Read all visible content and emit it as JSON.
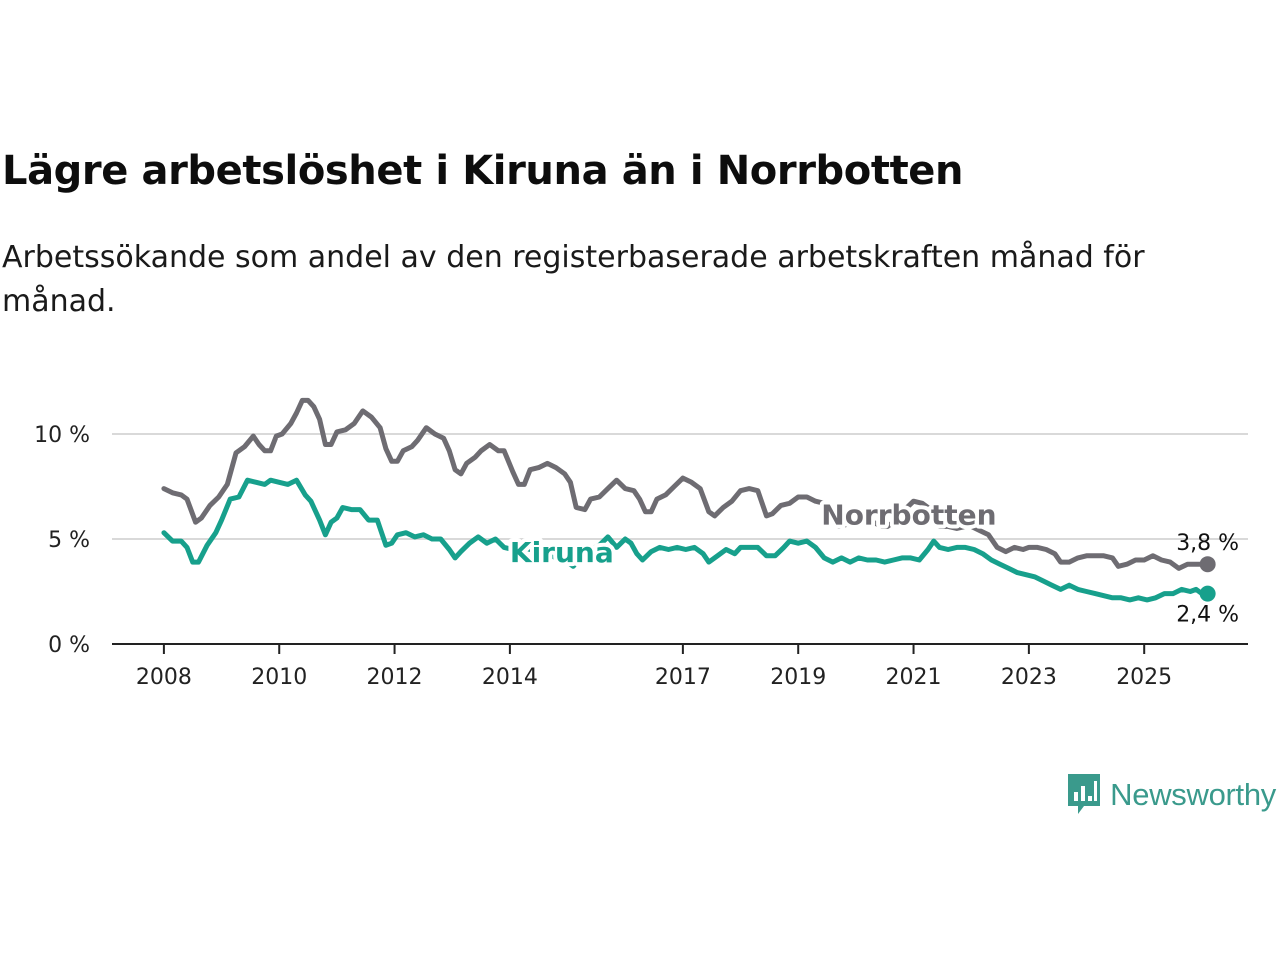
{
  "title": "Lägre arbetslöshet i Kiruna än i Norrbotten",
  "subtitle": "Arbetssökande som andel av den registerbaserade arbetskraften månad för månad.",
  "brand": {
    "name": "Newsworthy",
    "color": "#3a9a8c"
  },
  "chart_data": {
    "type": "line",
    "title": "Lägre arbetslöshet i Kiruna än i Norrbotten",
    "xlabel": "",
    "ylabel": "",
    "x_ticks": [
      {
        "value": 2008,
        "label": "2008"
      },
      {
        "value": 2010,
        "label": "2010"
      },
      {
        "value": 2012,
        "label": "2012"
      },
      {
        "value": 2014,
        "label": "2014"
      },
      {
        "value": 2017,
        "label": "2017"
      },
      {
        "value": 2019,
        "label": "2019"
      },
      {
        "value": 2021,
        "label": "2021"
      },
      {
        "value": 2023,
        "label": "2023"
      },
      {
        "value": 2025,
        "label": "2025"
      }
    ],
    "y_ticks": [
      {
        "value": 0,
        "label": "0 %"
      },
      {
        "value": 5,
        "label": "5 %"
      },
      {
        "value": 10,
        "label": "10 %"
      }
    ],
    "xlim": [
      2007.1,
      2026.8
    ],
    "ylim": [
      0,
      10
    ],
    "grid": true,
    "series": [
      {
        "name": "Norrbotten",
        "color": "#6e6c72",
        "end_label": "3,8 %",
        "points": [
          [
            2008.0,
            7.4
          ],
          [
            2008.15,
            7.2
          ],
          [
            2008.3,
            7.1
          ],
          [
            2008.4,
            6.9
          ],
          [
            2008.55,
            5.8
          ],
          [
            2008.65,
            6.0
          ],
          [
            2008.8,
            6.6
          ],
          [
            2008.95,
            7.0
          ],
          [
            2009.1,
            7.6
          ],
          [
            2009.25,
            9.1
          ],
          [
            2009.4,
            9.4
          ],
          [
            2009.55,
            9.9
          ],
          [
            2009.65,
            9.5
          ],
          [
            2009.75,
            9.2
          ],
          [
            2009.85,
            9.2
          ],
          [
            2009.95,
            9.9
          ],
          [
            2010.05,
            10.0
          ],
          [
            2010.2,
            10.5
          ],
          [
            2010.3,
            11.0
          ],
          [
            2010.4,
            11.6
          ],
          [
            2010.5,
            11.6
          ],
          [
            2010.6,
            11.3
          ],
          [
            2010.7,
            10.7
          ],
          [
            2010.8,
            9.5
          ],
          [
            2010.9,
            9.5
          ],
          [
            2011.0,
            10.1
          ],
          [
            2011.15,
            10.2
          ],
          [
            2011.3,
            10.5
          ],
          [
            2011.45,
            11.1
          ],
          [
            2011.6,
            10.8
          ],
          [
            2011.75,
            10.3
          ],
          [
            2011.85,
            9.3
          ],
          [
            2011.95,
            8.7
          ],
          [
            2012.05,
            8.7
          ],
          [
            2012.15,
            9.2
          ],
          [
            2012.3,
            9.4
          ],
          [
            2012.4,
            9.7
          ],
          [
            2012.55,
            10.3
          ],
          [
            2012.7,
            10.0
          ],
          [
            2012.85,
            9.8
          ],
          [
            2012.95,
            9.2
          ],
          [
            2013.05,
            8.3
          ],
          [
            2013.15,
            8.1
          ],
          [
            2013.25,
            8.6
          ],
          [
            2013.4,
            8.9
          ],
          [
            2013.5,
            9.2
          ],
          [
            2013.65,
            9.5
          ],
          [
            2013.8,
            9.2
          ],
          [
            2013.9,
            9.2
          ],
          [
            2014.05,
            8.2
          ],
          [
            2014.15,
            7.6
          ],
          [
            2014.25,
            7.6
          ],
          [
            2014.35,
            8.3
          ],
          [
            2014.5,
            8.4
          ],
          [
            2014.65,
            8.6
          ],
          [
            2014.8,
            8.4
          ],
          [
            2014.95,
            8.1
          ],
          [
            2015.05,
            7.7
          ],
          [
            2015.15,
            6.5
          ],
          [
            2015.3,
            6.4
          ],
          [
            2015.4,
            6.9
          ],
          [
            2015.55,
            7.0
          ],
          [
            2015.7,
            7.4
          ],
          [
            2015.85,
            7.8
          ],
          [
            2016.0,
            7.4
          ],
          [
            2016.15,
            7.3
          ],
          [
            2016.25,
            6.9
          ],
          [
            2016.35,
            6.3
          ],
          [
            2016.45,
            6.3
          ],
          [
            2016.55,
            6.9
          ],
          [
            2016.7,
            7.1
          ],
          [
            2016.85,
            7.5
          ],
          [
            2017.0,
            7.9
          ],
          [
            2017.15,
            7.7
          ],
          [
            2017.3,
            7.4
          ],
          [
            2017.45,
            6.3
          ],
          [
            2017.55,
            6.1
          ],
          [
            2017.7,
            6.5
          ],
          [
            2017.85,
            6.8
          ],
          [
            2018.0,
            7.3
          ],
          [
            2018.15,
            7.4
          ],
          [
            2018.3,
            7.3
          ],
          [
            2018.45,
            6.1
          ],
          [
            2018.55,
            6.2
          ],
          [
            2018.7,
            6.6
          ],
          [
            2018.85,
            6.7
          ],
          [
            2019.0,
            7.0
          ],
          [
            2019.15,
            7.0
          ],
          [
            2019.3,
            6.8
          ],
          [
            2019.45,
            6.7
          ],
          [
            2019.55,
            5.9
          ],
          [
            2019.7,
            5.6
          ],
          [
            2019.85,
            5.7
          ],
          [
            2020.0,
            6.0
          ],
          [
            2020.15,
            5.8
          ],
          [
            2020.3,
            5.8
          ],
          [
            2020.45,
            5.6
          ],
          [
            2020.55,
            5.6
          ],
          [
            2020.7,
            5.9
          ],
          [
            2020.85,
            6.4
          ],
          [
            2021.0,
            6.8
          ],
          [
            2021.15,
            6.7
          ],
          [
            2021.3,
            6.4
          ],
          [
            2021.45,
            5.6
          ],
          [
            2021.6,
            5.6
          ],
          [
            2021.75,
            5.5
          ],
          [
            2021.9,
            5.6
          ],
          [
            2022.0,
            5.6
          ],
          [
            2022.15,
            5.4
          ],
          [
            2022.3,
            5.2
          ],
          [
            2022.45,
            4.6
          ],
          [
            2022.6,
            4.4
          ],
          [
            2022.75,
            4.6
          ],
          [
            2022.9,
            4.5
          ],
          [
            2023.0,
            4.6
          ],
          [
            2023.15,
            4.6
          ],
          [
            2023.3,
            4.5
          ],
          [
            2023.45,
            4.3
          ],
          [
            2023.55,
            3.9
          ],
          [
            2023.7,
            3.9
          ],
          [
            2023.85,
            4.1
          ],
          [
            2024.0,
            4.2
          ],
          [
            2024.15,
            4.2
          ],
          [
            2024.3,
            4.2
          ],
          [
            2024.45,
            4.1
          ],
          [
            2024.55,
            3.7
          ],
          [
            2024.7,
            3.8
          ],
          [
            2024.85,
            4.0
          ],
          [
            2025.0,
            4.0
          ],
          [
            2025.15,
            4.2
          ],
          [
            2025.3,
            4.0
          ],
          [
            2025.45,
            3.9
          ],
          [
            2025.6,
            3.6
          ],
          [
            2025.75,
            3.8
          ],
          [
            2025.9,
            3.8
          ],
          [
            2026.0,
            3.8
          ],
          [
            2026.1,
            3.8
          ]
        ]
      },
      {
        "name": "Kiruna",
        "color": "#17a08c",
        "end_label": "2,4 %",
        "points": [
          [
            2008.0,
            5.3
          ],
          [
            2008.15,
            4.9
          ],
          [
            2008.3,
            4.9
          ],
          [
            2008.4,
            4.6
          ],
          [
            2008.5,
            3.9
          ],
          [
            2008.6,
            3.9
          ],
          [
            2008.75,
            4.7
          ],
          [
            2008.9,
            5.3
          ],
          [
            2009.0,
            5.9
          ],
          [
            2009.15,
            6.9
          ],
          [
            2009.3,
            7.0
          ],
          [
            2009.45,
            7.8
          ],
          [
            2009.6,
            7.7
          ],
          [
            2009.75,
            7.6
          ],
          [
            2009.85,
            7.8
          ],
          [
            2010.0,
            7.7
          ],
          [
            2010.15,
            7.6
          ],
          [
            2010.3,
            7.8
          ],
          [
            2010.45,
            7.1
          ],
          [
            2010.55,
            6.8
          ],
          [
            2010.7,
            5.9
          ],
          [
            2010.8,
            5.2
          ],
          [
            2010.9,
            5.8
          ],
          [
            2011.0,
            6.0
          ],
          [
            2011.1,
            6.5
          ],
          [
            2011.25,
            6.4
          ],
          [
            2011.4,
            6.4
          ],
          [
            2011.55,
            5.9
          ],
          [
            2011.7,
            5.9
          ],
          [
            2011.85,
            4.7
          ],
          [
            2011.95,
            4.8
          ],
          [
            2012.05,
            5.2
          ],
          [
            2012.2,
            5.3
          ],
          [
            2012.35,
            5.1
          ],
          [
            2012.5,
            5.2
          ],
          [
            2012.65,
            5.0
          ],
          [
            2012.8,
            5.0
          ],
          [
            2012.95,
            4.5
          ],
          [
            2013.05,
            4.1
          ],
          [
            2013.15,
            4.4
          ],
          [
            2013.3,
            4.8
          ],
          [
            2013.45,
            5.1
          ],
          [
            2013.6,
            4.8
          ],
          [
            2013.75,
            5.0
          ],
          [
            2013.9,
            4.6
          ],
          [
            2014.05,
            4.5
          ],
          [
            2014.2,
            4.6
          ],
          [
            2014.35,
            4.5
          ],
          [
            2014.5,
            4.4
          ],
          [
            2014.65,
            4.3
          ],
          [
            2014.8,
            4.1
          ],
          [
            2014.95,
            4.0
          ],
          [
            2015.1,
            3.7
          ],
          [
            2015.25,
            4.3
          ],
          [
            2015.4,
            4.5
          ],
          [
            2015.55,
            4.7
          ],
          [
            2015.7,
            5.1
          ],
          [
            2015.85,
            4.6
          ],
          [
            2016.0,
            5.0
          ],
          [
            2016.1,
            4.8
          ],
          [
            2016.2,
            4.3
          ],
          [
            2016.3,
            4.0
          ],
          [
            2016.45,
            4.4
          ],
          [
            2016.6,
            4.6
          ],
          [
            2016.75,
            4.5
          ],
          [
            2016.9,
            4.6
          ],
          [
            2017.05,
            4.5
          ],
          [
            2017.2,
            4.6
          ],
          [
            2017.35,
            4.3
          ],
          [
            2017.45,
            3.9
          ],
          [
            2017.6,
            4.2
          ],
          [
            2017.75,
            4.5
          ],
          [
            2017.9,
            4.3
          ],
          [
            2018.0,
            4.6
          ],
          [
            2018.15,
            4.6
          ],
          [
            2018.3,
            4.6
          ],
          [
            2018.45,
            4.2
          ],
          [
            2018.6,
            4.2
          ],
          [
            2018.75,
            4.6
          ],
          [
            2018.85,
            4.9
          ],
          [
            2019.0,
            4.8
          ],
          [
            2019.15,
            4.9
          ],
          [
            2019.3,
            4.6
          ],
          [
            2019.45,
            4.1
          ],
          [
            2019.6,
            3.9
          ],
          [
            2019.75,
            4.1
          ],
          [
            2019.9,
            3.9
          ],
          [
            2020.05,
            4.1
          ],
          [
            2020.2,
            4.0
          ],
          [
            2020.35,
            4.0
          ],
          [
            2020.5,
            3.9
          ],
          [
            2020.65,
            4.0
          ],
          [
            2020.8,
            4.1
          ],
          [
            2020.95,
            4.1
          ],
          [
            2021.1,
            4.0
          ],
          [
            2021.25,
            4.5
          ],
          [
            2021.35,
            4.9
          ],
          [
            2021.45,
            4.6
          ],
          [
            2021.6,
            4.5
          ],
          [
            2021.75,
            4.6
          ],
          [
            2021.9,
            4.6
          ],
          [
            2022.05,
            4.5
          ],
          [
            2022.2,
            4.3
          ],
          [
            2022.35,
            4.0
          ],
          [
            2022.5,
            3.8
          ],
          [
            2022.65,
            3.6
          ],
          [
            2022.8,
            3.4
          ],
          [
            2022.95,
            3.3
          ],
          [
            2023.1,
            3.2
          ],
          [
            2023.25,
            3.0
          ],
          [
            2023.4,
            2.8
          ],
          [
            2023.55,
            2.6
          ],
          [
            2023.7,
            2.8
          ],
          [
            2023.85,
            2.6
          ],
          [
            2024.0,
            2.5
          ],
          [
            2024.15,
            2.4
          ],
          [
            2024.3,
            2.3
          ],
          [
            2024.45,
            2.2
          ],
          [
            2024.6,
            2.2
          ],
          [
            2024.75,
            2.1
          ],
          [
            2024.9,
            2.2
          ],
          [
            2025.05,
            2.1
          ],
          [
            2025.2,
            2.2
          ],
          [
            2025.35,
            2.4
          ],
          [
            2025.5,
            2.4
          ],
          [
            2025.65,
            2.6
          ],
          [
            2025.8,
            2.5
          ],
          [
            2025.9,
            2.6
          ],
          [
            2026.0,
            2.4
          ],
          [
            2026.1,
            2.4
          ]
        ]
      }
    ],
    "annotations": [
      {
        "text": "Norrbotten",
        "series": "Norrbotten",
        "x": 2019.4,
        "y": 5.7
      },
      {
        "text": "Kiruna",
        "series": "Kiruna",
        "x": 2014.0,
        "y": 3.9
      }
    ]
  }
}
